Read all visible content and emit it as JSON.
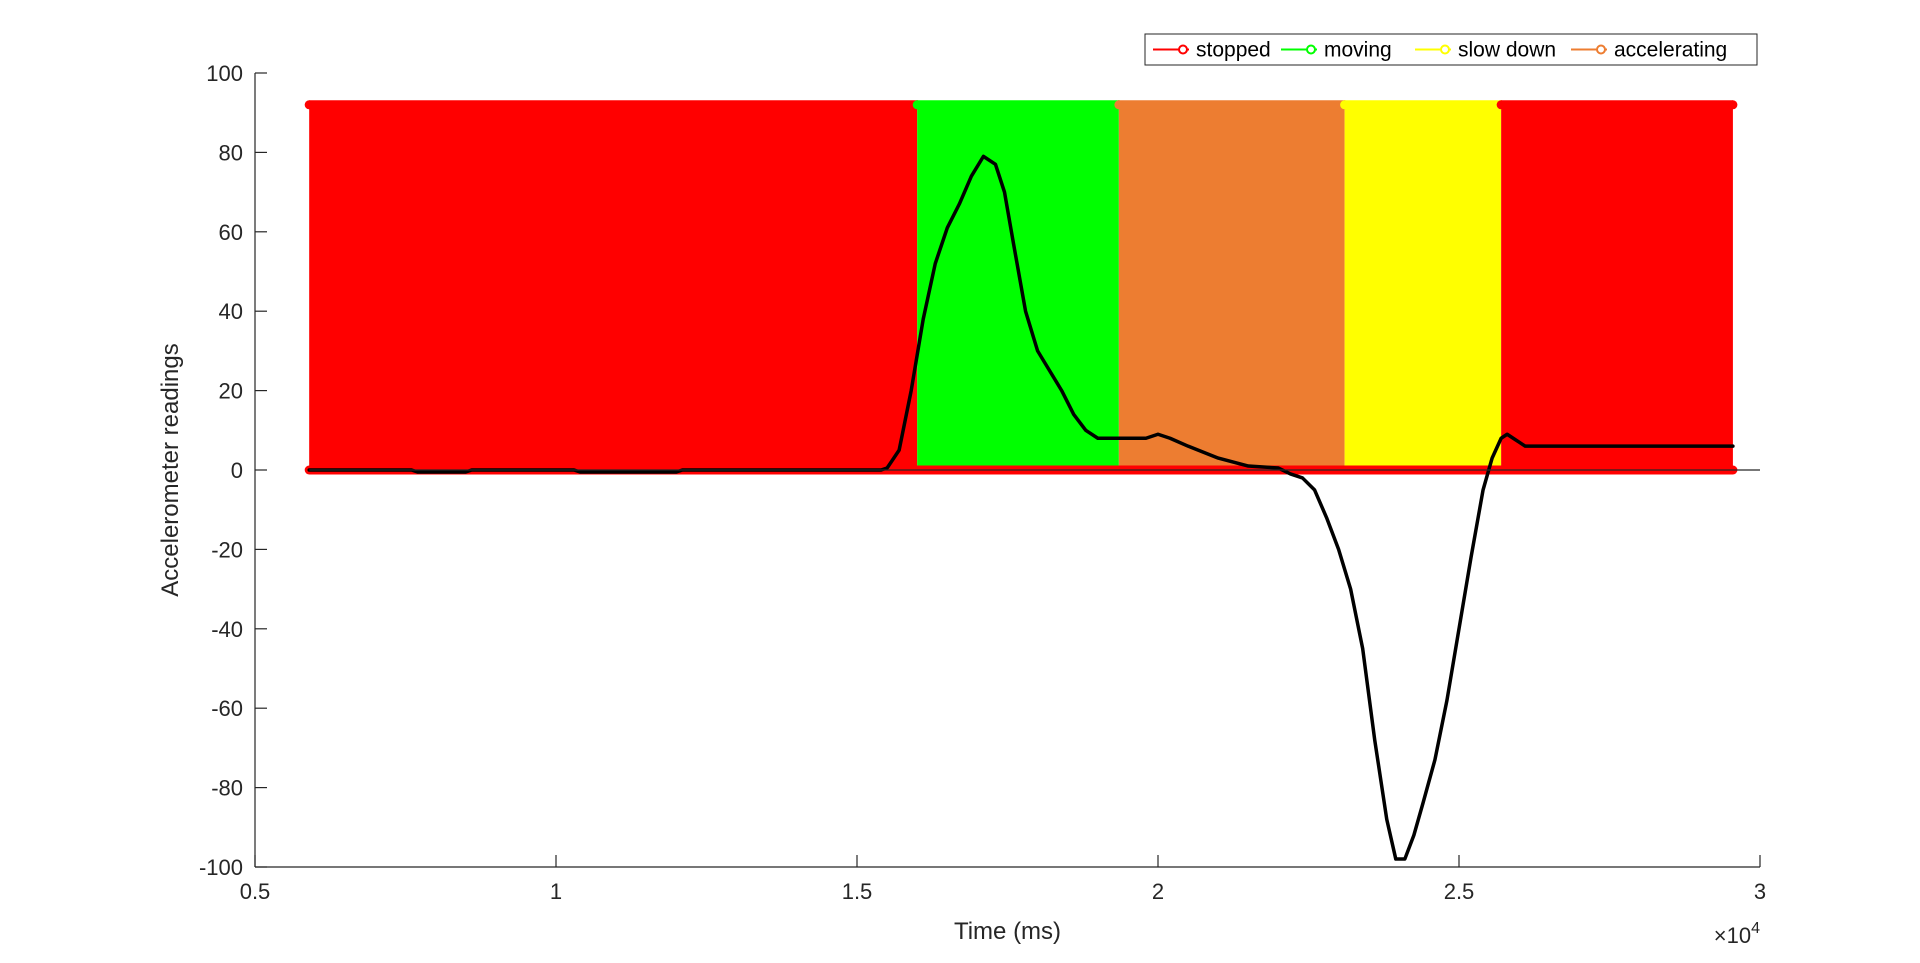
{
  "chart_data": {
    "type": "area",
    "title": "",
    "xlabel": "Time (ms)",
    "ylabel": "Accelerometer readings",
    "x_exponent_label": "×10",
    "x_exponent_power": "4",
    "xlim": [
      0.5,
      3
    ],
    "ylim": [
      -100,
      100
    ],
    "x_ticks": [
      0.5,
      1,
      1.5,
      2,
      2.5,
      3
    ],
    "x_tick_labels": [
      "0.5",
      "1",
      "1.5",
      "2",
      "2.5",
      "3"
    ],
    "y_ticks": [
      100,
      80,
      60,
      40,
      20,
      0,
      -20,
      -40,
      -60,
      -80,
      -100
    ],
    "y_tick_labels": [
      "100",
      "80",
      "60",
      "40",
      "20",
      "0",
      "-20",
      "-40",
      "-60",
      "-80",
      "-100"
    ],
    "grid": false,
    "legend_position": "top-right",
    "state_bands": [
      {
        "state": "stopped",
        "x_start": 0.59,
        "x_end": 1.6
      },
      {
        "state": "moving",
        "x_start": 1.6,
        "x_end": 1.935
      },
      {
        "state": "accelerating",
        "x_start": 1.935,
        "x_end": 2.31
      },
      {
        "state": "slow down",
        "x_start": 2.31,
        "x_end": 2.57
      },
      {
        "state": "stopped",
        "x_start": 2.57,
        "x_end": 2.955
      }
    ],
    "band_top": 92,
    "band_bottom": 0,
    "series": [
      {
        "name": "stopped",
        "color": "#ff0000"
      },
      {
        "name": "moving",
        "color": "#00ff00"
      },
      {
        "name": "slow down",
        "color": "#ffff00"
      },
      {
        "name": "accelerating",
        "color": "#ed7d31"
      }
    ],
    "signal": {
      "color": "#000000",
      "x": [
        0.59,
        0.76,
        0.77,
        0.85,
        0.86,
        1.03,
        1.04,
        1.2,
        1.21,
        1.54,
        1.55,
        1.57,
        1.59,
        1.61,
        1.63,
        1.65,
        1.67,
        1.69,
        1.71,
        1.73,
        1.745,
        1.76,
        1.78,
        1.8,
        1.82,
        1.84,
        1.86,
        1.88,
        1.9,
        1.92,
        1.94,
        1.98,
        2.0,
        2.02,
        2.05,
        2.1,
        2.15,
        2.2,
        2.22,
        2.24,
        2.26,
        2.28,
        2.3,
        2.32,
        2.34,
        2.36,
        2.38,
        2.395,
        2.41,
        2.425,
        2.44,
        2.46,
        2.48,
        2.5,
        2.52,
        2.54,
        2.555,
        2.57,
        2.58,
        2.59,
        2.6,
        2.61,
        2.63,
        2.7,
        2.75,
        2.8,
        2.85,
        2.9,
        2.955
      ],
      "y": [
        0,
        0,
        -0.5,
        -0.5,
        0,
        0,
        -0.5,
        -0.5,
        0,
        0,
        0.5,
        5,
        20,
        38,
        52,
        61,
        67,
        74,
        79,
        77,
        70,
        57,
        40,
        30,
        25,
        20,
        14,
        10,
        8,
        8,
        8,
        8,
        9,
        8,
        6,
        3,
        1,
        0.5,
        -1,
        -2,
        -5,
        -12,
        -20,
        -30,
        -45,
        -68,
        -88,
        -98,
        -98,
        -92,
        -84,
        -73,
        -58,
        -40,
        -22,
        -5,
        3,
        8,
        9,
        8,
        7,
        6,
        6,
        6,
        6,
        6,
        6,
        6,
        6
      ]
    }
  }
}
